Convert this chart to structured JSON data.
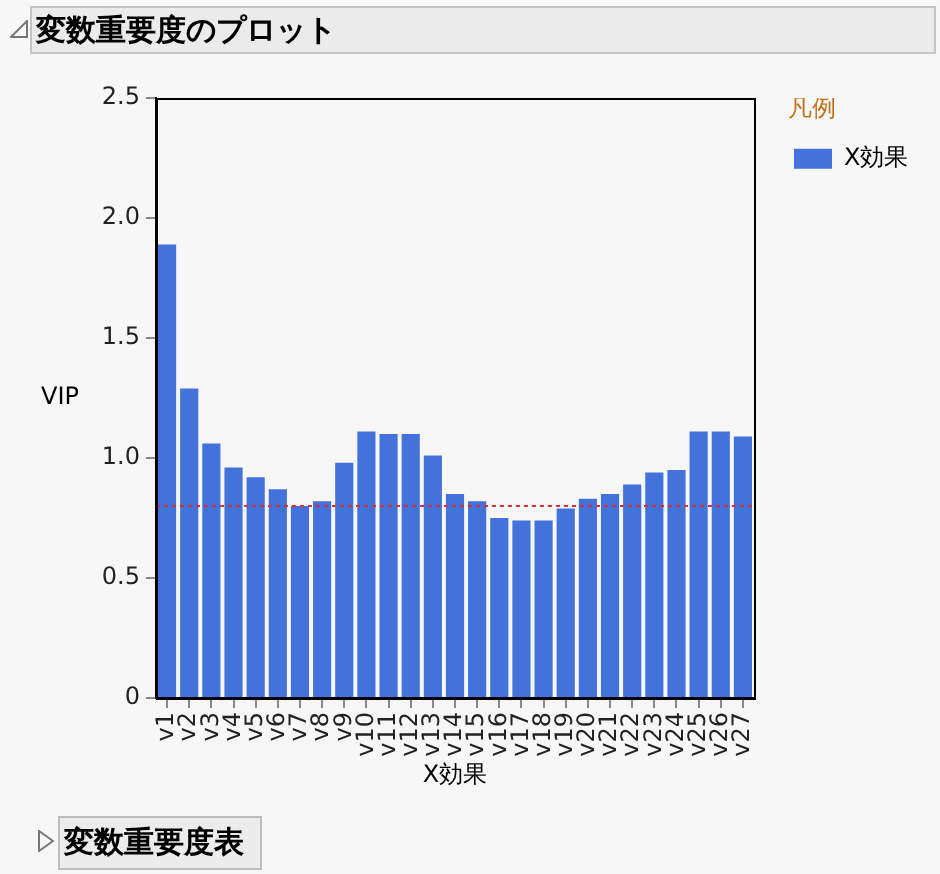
{
  "chart_data": {
    "type": "bar",
    "title": "変数重要度のプロット",
    "xlabel": "X効果",
    "ylabel": "VIP",
    "legend_title": "凡例",
    "categories": [
      "v1",
      "v2",
      "v3",
      "v4",
      "v5",
      "v6",
      "v7",
      "v8",
      "v9",
      "v10",
      "v11",
      "v12",
      "v13",
      "v14",
      "v15",
      "v16",
      "v17",
      "v18",
      "v19",
      "v20",
      "v21",
      "v22",
      "v23",
      "v24",
      "v25",
      "v26",
      "v27"
    ],
    "series": [
      {
        "name": "X効果",
        "color": "#4472db",
        "values": [
          1.89,
          1.29,
          1.06,
          0.96,
          0.92,
          0.87,
          0.8,
          0.82,
          0.98,
          1.11,
          1.1,
          1.1,
          1.01,
          0.85,
          0.82,
          0.75,
          0.74,
          0.74,
          0.79,
          0.83,
          0.85,
          0.89,
          0.94,
          0.95,
          1.11,
          1.11,
          1.09
        ]
      }
    ],
    "ylim": [
      0,
      2.5
    ],
    "yticks": [
      0,
      0.5,
      {
        "value": 1,
        "label": "1.0"
      },
      1.5,
      {
        "value": 2,
        "label": "2.0"
      },
      2.5
    ],
    "grid": false,
    "legend": "right",
    "ref_lines": [
      {
        "axis": "y",
        "value": 0.8,
        "color": "#d62f3a",
        "line_style": "dotted"
      }
    ],
    "annotations": [
      "変数重要度表"
    ]
  }
}
